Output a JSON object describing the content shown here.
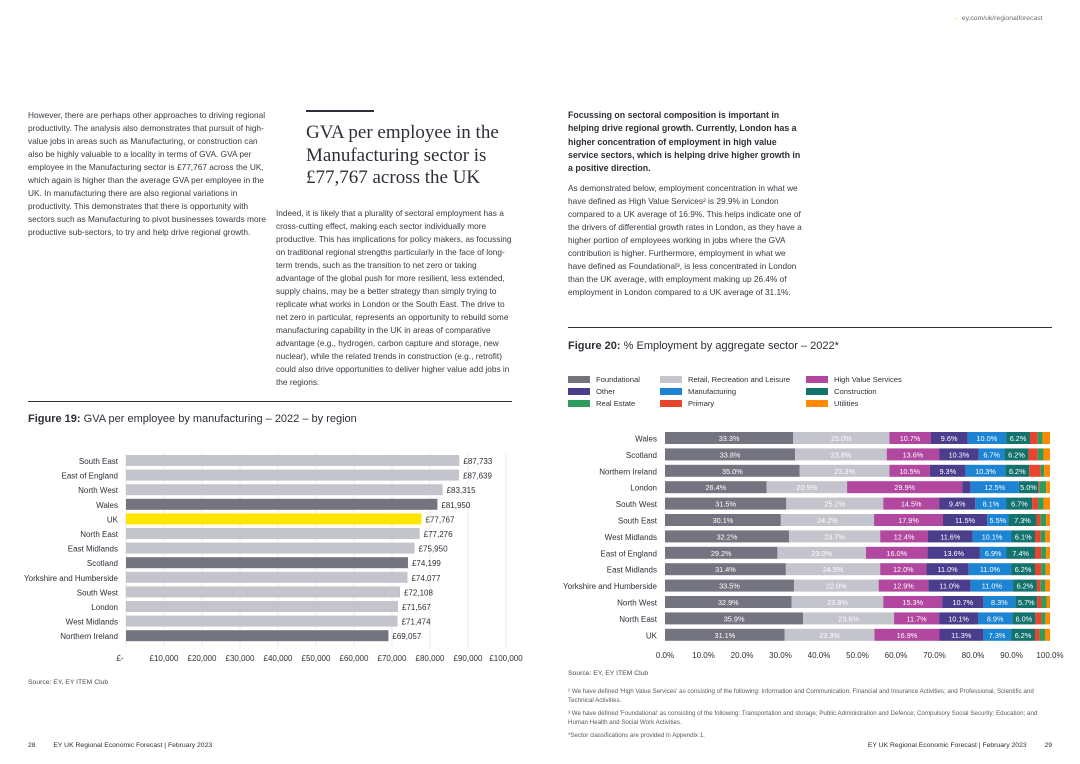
{
  "header": {
    "link": "ey.com/uk/regionalforecast"
  },
  "left_col": {
    "text": "However, there are perhaps other approaches to driving regional productivity. The analysis also demonstrates that pursuit of high-value jobs in areas such as Manufacturing, or construction can also be highly valuable to a locality in terms of GVA. GVA per employee in the Manufacturing sector is £77,767 across the UK, which again is higher than the average GVA per employee in the UK. In manufacturing there are also regional variations in productivity. This demonstrates that there is opportunity with sectors such as Manufacturing to pivot businesses towards more productive sub-sectors, to try and help drive regional growth."
  },
  "mid_col": {
    "pull_quote": "GVA per employee in the Manufacturing sector is £77,767 across the UK",
    "text": "Indeed, it is likely that a plurality of sectoral employment has a cross-cutting effect, making each sector individually more productive. This has implications for policy makers, as focussing on traditional regional strengths particularly in the face of long-term trends, such as the transition to net zero or taking advantage of the global push for more resilient, less extended, supply chains, may be a better strategy than simply trying to replicate what works in London or the South East. The drive to net zero in particular, represents an opportunity to rebuild some manufacturing capability in the UK in areas of comparative advantage (e.g., hydrogen, carbon capture and storage, new nuclear), while the related trends in construction (e.g., retrofit) could also drive opportunities to deliver higher value add jobs in the regions."
  },
  "right_col": {
    "lead": "Focussing on sectoral composition is important in helping drive regional growth. Currently, London has a higher concentration of employment in high value service sectors, which is helping drive higher growth in a positive direction.",
    "text": "As demonstrated below, employment concentration in what we have defined as High Value Services² is 29.9% in London compared to a UK average of 16.9%. This helps indicate one of the drivers of differential growth rates in London, as they have a higher portion of employees working in jobs where the GVA contribution is higher. Furthermore, employment in what we have defined as Foundational³, is less concentrated in London than the UK average, with employment making up 26.4% of employment in London compared to a UK average of 31.1%."
  },
  "fig19": {
    "label": "Figure 19:",
    "title": "GVA per employee by manufacturing – 2022 – by region",
    "source": "Source: EY, EY ITEM Club"
  },
  "fig20": {
    "label": "Figure 20:",
    "title": "% Employment by aggregate sector – 2022*",
    "source": "Source: EY, EY ITEM Club"
  },
  "footnotes": {
    "f2": "² We have defined 'High Value Services' as consisting of the following: Information and Communication; Financial and Insurance Activities; and Professional, Scientific and Technical Activities.",
    "f3": "³ We have defined 'Foundational' as consisting of the following: Transportation and storage; Public Administration and Defence; Compulsory Social Security; Education; and Human Health and Social Work Activities.",
    "f4": "*Sector classifications are provided in Appendix 1."
  },
  "footer": {
    "left_page": "28",
    "left_text": "EY UK Regional Economic Forecast | February 2023",
    "right_text": "EY UK Regional Economic Forecast | February 2023",
    "right_page": "29"
  },
  "chart_data": [
    {
      "type": "bar",
      "orientation": "horizontal",
      "categories": [
        "South East",
        "East of England",
        "North West",
        "Wales",
        "UK",
        "North East",
        "East Midlands",
        "Scotland",
        "Yorkshire and Humberside",
        "South West",
        "London",
        "West Midlands",
        "Northern Ireland"
      ],
      "values": [
        87733,
        87639,
        83315,
        81950,
        77767,
        77276,
        75950,
        74199,
        74077,
        72108,
        71567,
        71474,
        69057
      ],
      "value_labels": [
        "£87,733",
        "£87,639",
        "£83,315",
        "£81,950",
        "£77,767",
        "£77,276",
        "£75,950",
        "£74,199",
        "£74,077",
        "£72,108",
        "£71,567",
        "£71,474",
        "£69,057"
      ],
      "bar_colors": [
        "#c4c4cd",
        "#c4c4cd",
        "#c4c4cd",
        "#747480",
        "#ffe600",
        "#c4c4cd",
        "#c4c4cd",
        "#747480",
        "#c4c4cd",
        "#c4c4cd",
        "#c4c4cd",
        "#c4c4cd",
        "#747480"
      ],
      "xlim": [
        0,
        100000
      ],
      "x_ticks": [
        "£-",
        "£10,000",
        "£20,000",
        "£30,000",
        "£40,000",
        "£50,000",
        "£60,000",
        "£70,000",
        "£80,000",
        "£90,000",
        "£100,000"
      ],
      "grid": true
    },
    {
      "type": "bar",
      "orientation": "horizontal",
      "stacked": true,
      "categories": [
        "Wales",
        "Scotland",
        "Northern Ireland",
        "London",
        "South West",
        "South East",
        "West Midlands",
        "East of England",
        "East Midlands",
        "Yorkshire and Humberside",
        "North West",
        "North East",
        "UK"
      ],
      "series": [
        {
          "name": "Foundational",
          "color": "#747480",
          "values": [
            33.3,
            33.8,
            35.0,
            26.4,
            31.5,
            30.1,
            32.2,
            29.2,
            31.4,
            33.5,
            32.9,
            35.9,
            31.1
          ],
          "labels": [
            "33.3%",
            "33.8%",
            "35.0%",
            "26.4%",
            "31.5%",
            "30.1%",
            "32.2%",
            "29.2%",
            "31.4%",
            "33.5%",
            "32.9%",
            "35.9%",
            "31.1%"
          ]
        },
        {
          "name": "Retail, Recreation and Leisure",
          "color": "#c4c4cd",
          "values": [
            25.0,
            23.8,
            23.3,
            20.9,
            25.2,
            24.2,
            23.7,
            23.0,
            24.5,
            22.0,
            23.8,
            23.6,
            23.3
          ],
          "labels": [
            "25.0%",
            "23.8%",
            "23.3%",
            "20.9%",
            "25.2%",
            "24.2%",
            "23.7%",
            "23.0%",
            "24.5%",
            "22.0%",
            "23.8%",
            "23.6%",
            "23.3%"
          ]
        },
        {
          "name": "High Value Services",
          "color": "#b1479e",
          "values": [
            10.7,
            13.6,
            10.5,
            29.9,
            14.5,
            17.9,
            12.4,
            16.0,
            12.0,
            12.9,
            15.3,
            11.7,
            16.9
          ],
          "labels": [
            "10.7%",
            "13.6%",
            "10.5%",
            "29.9%",
            "14.5%",
            "17.9%",
            "12.4%",
            "16.0%",
            "12.0%",
            "12.9%",
            "15.3%",
            "11.7%",
            "16.9%"
          ]
        },
        {
          "name": "Other",
          "color": "#4b3d8c",
          "values": [
            9.6,
            10.3,
            9.3,
            2.2,
            9.4,
            11.5,
            11.6,
            13.6,
            11.0,
            11.0,
            10.7,
            10.1,
            11.3
          ],
          "labels": [
            "9.6%",
            "10.3%",
            "9.3%",
            "2.2%",
            "9.4%",
            "11.5%",
            "11.6%",
            "13.6%",
            "11.0%",
            "11.0%",
            "10.7%",
            "10.1%",
            "11.3%"
          ]
        },
        {
          "name": "Manufacturing",
          "color": "#1c84d3",
          "values": [
            10.0,
            6.7,
            10.3,
            12.5,
            8.1,
            5.5,
            10.1,
            6.9,
            11.0,
            11.0,
            8.3,
            8.9,
            7.3
          ],
          "labels": [
            "10.0%",
            "6.7%",
            "10.3%",
            "12.5%",
            "8.1%",
            "5.5%",
            "10.1%",
            "6.9%",
            "11.0%",
            "11.0%",
            "8.3%",
            "8.9%",
            "7.3%"
          ]
        },
        {
          "name": "Construction",
          "color": "#14726d",
          "values": [
            6.2,
            6.2,
            6.2,
            5.0,
            6.7,
            7.3,
            6.1,
            7.4,
            6.2,
            6.2,
            5.7,
            6.0,
            6.2
          ],
          "labels": [
            "6.2%",
            "6.2%",
            "6.2%",
            "5.0%",
            "6.7%",
            "7.3%",
            "6.1%",
            "7.4%",
            "6.2%",
            "6.2%",
            "5.7%",
            "6.0%",
            "6.2%"
          ]
        },
        {
          "name": "Primary",
          "color": "#e8452e",
          "values": [
            2.0,
            2.4,
            3.0,
            0.3,
            1.5,
            1.1,
            1.5,
            1.6,
            1.6,
            1.0,
            1.1,
            1.6,
            1.2
          ],
          "labels": []
        },
        {
          "name": "Real Estate",
          "color": "#2e9c5c",
          "values": [
            1.3,
            1.5,
            0.9,
            1.8,
            1.4,
            1.4,
            1.2,
            1.3,
            1.2,
            1.2,
            1.3,
            1.0,
            1.4
          ],
          "labels": []
        },
        {
          "name": "Utilities",
          "color": "#ff8a00",
          "values": [
            1.9,
            1.7,
            1.5,
            1.0,
            1.7,
            1.0,
            1.2,
            1.0,
            1.1,
            1.2,
            0.9,
            1.2,
            1.3
          ],
          "labels": []
        }
      ],
      "xlim": [
        0,
        100
      ],
      "x_ticks": [
        "0.0%",
        "10.0%",
        "20.0%",
        "30.0%",
        "40.0%",
        "50.0%",
        "60.0%",
        "70.0%",
        "80.0%",
        "90.0%",
        "100.0%"
      ],
      "legend_position": "top",
      "legend_order": [
        [
          "Foundational",
          "Retail, Recreation and Leisure",
          "High Value Services"
        ],
        [
          "Other",
          "Manufacturing",
          "Construction"
        ],
        [
          "Real Estate",
          "Primary",
          "Utilities"
        ]
      ]
    }
  ]
}
